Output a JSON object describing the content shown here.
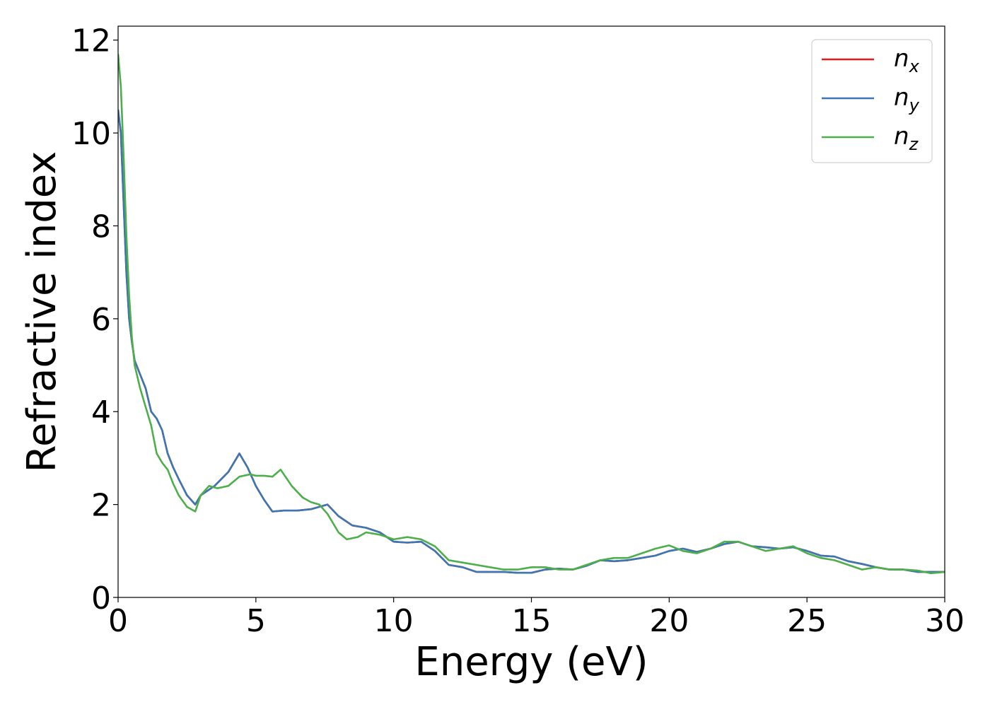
{
  "chart_data": {
    "type": "line",
    "xlabel": "Energy (eV)",
    "ylabel": "Refractive index",
    "xlim": [
      0,
      30
    ],
    "ylim": [
      0,
      12.3
    ],
    "x_ticks": [
      0,
      5,
      10,
      15,
      20,
      25,
      30
    ],
    "y_ticks": [
      0,
      2,
      4,
      6,
      8,
      10,
      12
    ],
    "x_tick_labels": [
      "0",
      "5",
      "10",
      "15",
      "20",
      "25",
      "30"
    ],
    "y_tick_labels": [
      "0",
      "2",
      "4",
      "6",
      "8",
      "10",
      "12"
    ],
    "grid": false,
    "legend_position": "top-right",
    "series": [
      {
        "name": "n",
        "subscript": "x",
        "color": "#e41a1c",
        "x": [
          0,
          0.1,
          0.2,
          0.3,
          0.4,
          0.5,
          0.6,
          0.8,
          1.0,
          1.2,
          1.4,
          1.6,
          1.8,
          2.0,
          2.2,
          2.5,
          2.8,
          3.0,
          3.5,
          4.0,
          4.4,
          4.7,
          5.0,
          5.3,
          5.6,
          6.0,
          6.5,
          7.0,
          7.3,
          7.6,
          8.0,
          8.5,
          9.0,
          9.5,
          10.0,
          10.5,
          11.0,
          11.5,
          12.0,
          12.5,
          13.0,
          13.5,
          14.0,
          14.5,
          15.0,
          15.5,
          16.0,
          16.5,
          17.0,
          17.5,
          18.0,
          18.5,
          19.0,
          19.5,
          20.0,
          20.5,
          21.0,
          21.5,
          22.0,
          22.5,
          23.0,
          23.5,
          24.0,
          24.5,
          25.0,
          25.5,
          26.0,
          26.5,
          27.0,
          27.5,
          28.0,
          28.5,
          29.0,
          29.5,
          30.0
        ],
        "values": [
          10.5,
          10.0,
          8.5,
          7.0,
          6.0,
          5.5,
          5.1,
          4.8,
          4.5,
          4.0,
          3.85,
          3.6,
          3.1,
          2.8,
          2.55,
          2.2,
          2.0,
          2.2,
          2.4,
          2.7,
          3.1,
          2.8,
          2.4,
          2.1,
          1.85,
          1.87,
          1.87,
          1.9,
          1.95,
          2.0,
          1.75,
          1.55,
          1.5,
          1.4,
          1.2,
          1.18,
          1.2,
          1.0,
          0.7,
          0.65,
          0.55,
          0.55,
          0.55,
          0.53,
          0.53,
          0.6,
          0.62,
          0.6,
          0.68,
          0.8,
          0.78,
          0.8,
          0.85,
          0.9,
          1.0,
          1.05,
          0.98,
          1.05,
          1.15,
          1.2,
          1.1,
          1.08,
          1.05,
          1.08,
          1.0,
          0.9,
          0.88,
          0.78,
          0.72,
          0.65,
          0.6,
          0.6,
          0.55,
          0.55,
          0.55
        ]
      },
      {
        "name": "n",
        "subscript": "y",
        "color": "#3b77b4",
        "x": [
          0,
          0.1,
          0.2,
          0.3,
          0.4,
          0.5,
          0.6,
          0.8,
          1.0,
          1.2,
          1.4,
          1.6,
          1.8,
          2.0,
          2.2,
          2.5,
          2.8,
          3.0,
          3.5,
          4.0,
          4.4,
          4.7,
          5.0,
          5.3,
          5.6,
          6.0,
          6.5,
          7.0,
          7.3,
          7.6,
          8.0,
          8.5,
          9.0,
          9.5,
          10.0,
          10.5,
          11.0,
          11.5,
          12.0,
          12.5,
          13.0,
          13.5,
          14.0,
          14.5,
          15.0,
          15.5,
          16.0,
          16.5,
          17.0,
          17.5,
          18.0,
          18.5,
          19.0,
          19.5,
          20.0,
          20.5,
          21.0,
          21.5,
          22.0,
          22.5,
          23.0,
          23.5,
          24.0,
          24.5,
          25.0,
          25.5,
          26.0,
          26.5,
          27.0,
          27.5,
          28.0,
          28.5,
          29.0,
          29.5,
          30.0
        ],
        "values": [
          10.5,
          10.0,
          8.5,
          7.0,
          6.0,
          5.5,
          5.1,
          4.8,
          4.5,
          4.0,
          3.85,
          3.6,
          3.1,
          2.8,
          2.55,
          2.2,
          2.0,
          2.2,
          2.4,
          2.7,
          3.1,
          2.8,
          2.4,
          2.1,
          1.85,
          1.87,
          1.87,
          1.9,
          1.95,
          2.0,
          1.75,
          1.55,
          1.5,
          1.4,
          1.2,
          1.18,
          1.2,
          1.0,
          0.7,
          0.65,
          0.55,
          0.55,
          0.55,
          0.53,
          0.53,
          0.6,
          0.62,
          0.6,
          0.68,
          0.8,
          0.78,
          0.8,
          0.85,
          0.9,
          1.0,
          1.05,
          0.98,
          1.05,
          1.15,
          1.2,
          1.1,
          1.08,
          1.05,
          1.08,
          1.0,
          0.9,
          0.88,
          0.78,
          0.72,
          0.65,
          0.6,
          0.6,
          0.55,
          0.55,
          0.55
        ]
      },
      {
        "name": "n",
        "subscript": "z",
        "color": "#4daf4a",
        "x": [
          0,
          0.1,
          0.2,
          0.3,
          0.4,
          0.5,
          0.6,
          0.8,
          1.0,
          1.2,
          1.4,
          1.6,
          1.8,
          2.0,
          2.2,
          2.5,
          2.8,
          3.0,
          3.3,
          3.6,
          4.0,
          4.4,
          4.8,
          5.0,
          5.3,
          5.6,
          5.9,
          6.3,
          6.7,
          7.0,
          7.3,
          7.6,
          8.0,
          8.3,
          8.7,
          9.0,
          9.5,
          10.0,
          10.5,
          11.0,
          11.5,
          12.0,
          12.5,
          13.0,
          13.5,
          14.0,
          14.5,
          15.0,
          15.5,
          16.0,
          16.5,
          17.0,
          17.5,
          18.0,
          18.5,
          19.0,
          19.5,
          20.0,
          20.5,
          21.0,
          21.5,
          22.0,
          22.5,
          23.0,
          23.5,
          24.0,
          24.5,
          25.0,
          25.5,
          26.0,
          26.5,
          27.0,
          27.5,
          28.0,
          28.5,
          29.0,
          29.5,
          30.0
        ],
        "values": [
          11.7,
          11.0,
          9.5,
          7.8,
          6.5,
          5.6,
          5.0,
          4.5,
          4.1,
          3.7,
          3.1,
          2.9,
          2.75,
          2.45,
          2.2,
          1.95,
          1.85,
          2.2,
          2.4,
          2.35,
          2.4,
          2.6,
          2.65,
          2.62,
          2.62,
          2.6,
          2.75,
          2.4,
          2.15,
          2.05,
          2.0,
          1.8,
          1.4,
          1.25,
          1.3,
          1.4,
          1.35,
          1.25,
          1.3,
          1.25,
          1.1,
          0.8,
          0.75,
          0.7,
          0.65,
          0.6,
          0.6,
          0.65,
          0.65,
          0.6,
          0.6,
          0.7,
          0.8,
          0.85,
          0.85,
          0.95,
          1.05,
          1.12,
          1.0,
          0.95,
          1.05,
          1.2,
          1.2,
          1.1,
          1.0,
          1.05,
          1.1,
          0.95,
          0.85,
          0.8,
          0.7,
          0.6,
          0.65,
          0.6,
          0.6,
          0.58,
          0.52,
          0.55
        ]
      }
    ]
  }
}
